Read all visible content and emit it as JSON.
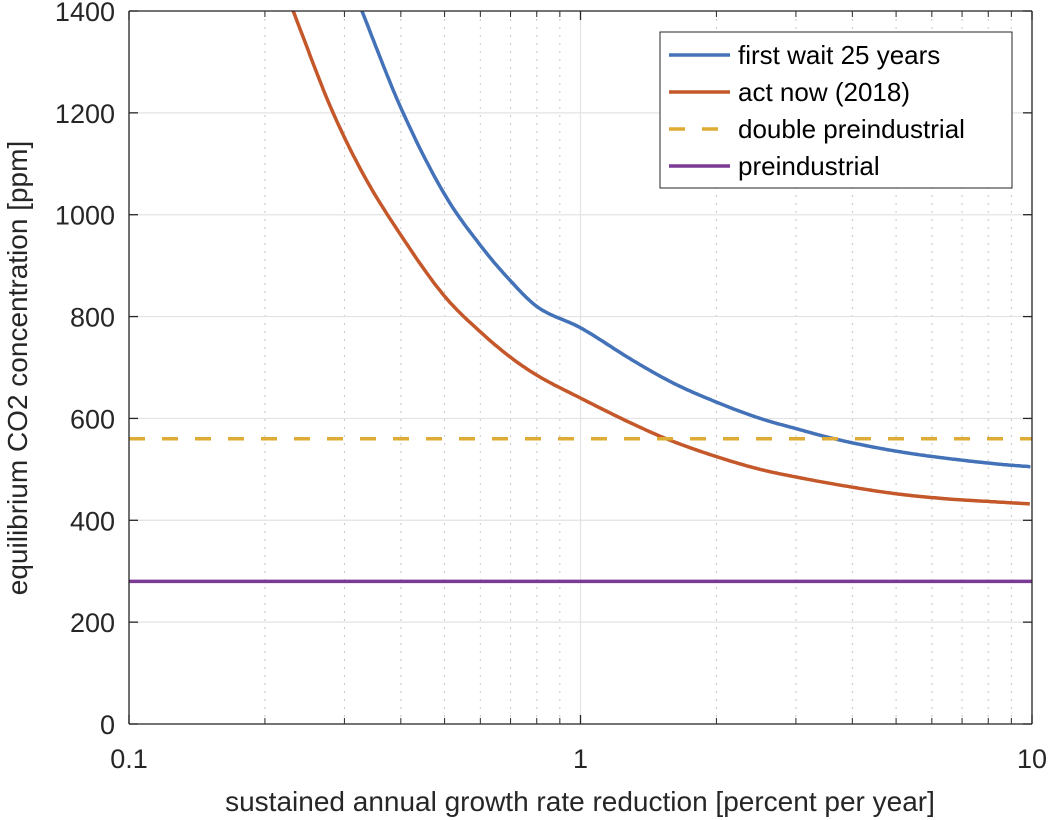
{
  "chart_data": {
    "type": "line",
    "title": "",
    "xlabel": "sustained annual growth rate reduction [percent per year]",
    "ylabel": "equilibrium CO2 concentration [ppm]",
    "xscale": "log",
    "xlim": [
      0.1,
      10
    ],
    "ylim": [
      0,
      1400
    ],
    "xticks": [
      0.1,
      1,
      10
    ],
    "xtick_labels": [
      "0.1",
      "1",
      "10"
    ],
    "yticks": [
      0,
      200,
      400,
      600,
      800,
      1000,
      1200,
      1400
    ],
    "ytick_labels": [
      "0",
      "200",
      "400",
      "600",
      "800",
      "1000",
      "1200",
      "1400"
    ],
    "grid": true,
    "minor_grid": true,
    "legend_position": "top-right",
    "series": [
      {
        "name": "first wait 25 years",
        "color": "#4472b8",
        "style": "solid",
        "x": [
          0.328,
          0.4,
          0.5,
          0.6,
          0.7,
          0.8,
          1.0,
          1.3,
          1.6,
          2.0,
          2.5,
          3.0,
          3.65,
          4.5,
          5.5,
          7.0,
          8.5,
          10.0
        ],
        "y": [
          1400,
          1210,
          1040,
          940,
          870,
          820,
          778,
          715,
          670,
          632,
          600,
          580,
          560,
          543,
          530,
          518,
          510,
          505
        ]
      },
      {
        "name": "act now (2018)",
        "color": "#c4582a",
        "style": "solid",
        "x": [
          0.231,
          0.28,
          0.33,
          0.4,
          0.5,
          0.6,
          0.7,
          0.8,
          1.0,
          1.3,
          1.55,
          2.0,
          2.5,
          3.0,
          4.0,
          5.0,
          6.5,
          8.0,
          10.0
        ],
        "y": [
          1400,
          1210,
          1080,
          960,
          840,
          770,
          720,
          685,
          640,
          590,
          560,
          525,
          500,
          485,
          465,
          452,
          442,
          437,
          432
        ]
      },
      {
        "name": "double preindustrial",
        "color": "#deac35",
        "style": "dashed",
        "x": [
          0.1,
          10
        ],
        "y": [
          560,
          560
        ]
      },
      {
        "name": "preindustrial",
        "color": "#7a3a96",
        "style": "solid",
        "x": [
          0.1,
          10
        ],
        "y": [
          280,
          280
        ]
      }
    ]
  }
}
